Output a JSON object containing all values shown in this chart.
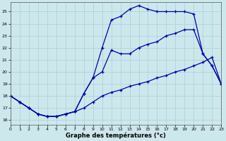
{
  "xlabel": "Graphe des températures (°c)",
  "background_color": "#cde8ec",
  "grid_color": "#aacdd4",
  "line_color": "#0000aa",
  "x_ticks": [
    0,
    1,
    2,
    3,
    4,
    5,
    6,
    7,
    8,
    9,
    10,
    11,
    12,
    13,
    14,
    15,
    16,
    17,
    18,
    19,
    20,
    21,
    22,
    23
  ],
  "y_ticks": [
    16,
    17,
    18,
    19,
    20,
    21,
    22,
    23,
    24,
    25
  ],
  "xlim": [
    0,
    23
  ],
  "ylim": [
    15.6,
    25.8
  ],
  "series": [
    {
      "x": [
        0,
        1,
        2,
        3,
        4,
        5,
        6,
        7,
        8,
        9,
        10,
        11,
        12,
        13,
        14,
        15,
        16,
        17,
        18,
        19,
        20,
        21,
        22,
        23
      ],
      "y": [
        18.0,
        17.5,
        17.0,
        16.5,
        16.3,
        16.3,
        16.5,
        16.7,
        17.0,
        17.5,
        18.0,
        18.3,
        18.5,
        18.8,
        19.0,
        19.2,
        19.5,
        19.7,
        20.0,
        20.2,
        20.5,
        20.8,
        21.2,
        19.0
      ]
    },
    {
      "x": [
        0,
        1,
        2,
        3,
        4,
        5,
        6,
        7,
        8,
        9,
        10,
        11,
        12,
        13,
        14,
        15,
        16,
        17,
        18,
        19,
        20,
        21,
        22,
        23
      ],
      "y": [
        18.0,
        17.5,
        17.0,
        16.5,
        16.3,
        16.3,
        16.5,
        16.7,
        18.2,
        19.5,
        20.0,
        21.8,
        21.5,
        21.5,
        22.0,
        22.3,
        22.5,
        23.0,
        23.2,
        23.5,
        23.5,
        21.5,
        20.5,
        19.0
      ]
    },
    {
      "x": [
        0,
        1,
        2,
        3,
        4,
        5,
        6,
        7,
        8,
        9,
        10,
        11,
        12,
        13,
        14,
        15,
        16,
        17,
        18,
        19,
        20,
        21,
        22,
        23
      ],
      "y": [
        18.0,
        17.5,
        17.0,
        16.5,
        16.3,
        16.3,
        16.5,
        16.7,
        18.2,
        19.5,
        22.0,
        24.3,
        24.6,
        25.2,
        25.5,
        25.2,
        25.0,
        25.0,
        25.0,
        25.0,
        24.8,
        21.5,
        20.5,
        19.0
      ]
    }
  ]
}
